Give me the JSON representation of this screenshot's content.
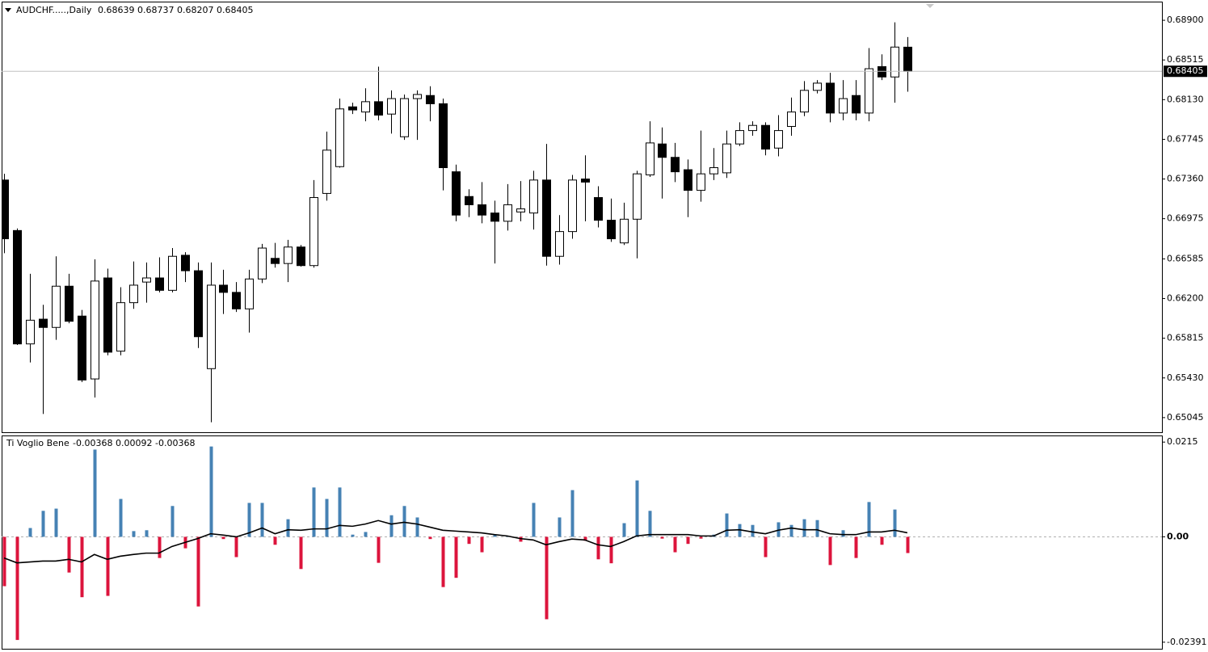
{
  "chart_data": [
    {
      "type": "candlestick",
      "title": "AUDCHF.....,Daily",
      "open": [
        0.6735,
        0.6686,
        0.6576,
        0.66,
        0.6592,
        0.6632,
        0.6603,
        0.6542,
        0.664,
        0.6569,
        0.6616,
        0.6636,
        0.664,
        0.6628,
        0.6662,
        0.6647,
        0.6552,
        0.6633,
        0.6626,
        0.661,
        0.6639,
        0.6659,
        0.6654,
        0.667,
        0.6652,
        0.6722,
        0.6748,
        0.6806,
        0.6801,
        0.6811,
        0.6799,
        0.6777,
        0.6814,
        0.6817,
        0.6809,
        0.6743,
        0.6719,
        0.6711,
        0.6703,
        0.6695,
        0.6704,
        0.6703,
        0.6735,
        0.6661,
        0.6685,
        0.6736,
        0.6718,
        0.6696,
        0.6674,
        0.6697,
        0.674,
        0.677,
        0.6757,
        0.6745,
        0.6725,
        0.6741,
        0.6742,
        0.677,
        0.6783,
        0.6788,
        0.6766,
        0.6787,
        0.6801,
        0.6822,
        0.6829,
        0.68,
        0.6817,
        0.68,
        0.6845,
        0.6835,
        0.68639
      ],
      "high": [
        0.6741,
        0.6688,
        0.6644,
        0.6614,
        0.6661,
        0.6644,
        0.6609,
        0.6658,
        0.6649,
        0.6631,
        0.6656,
        0.6655,
        0.666,
        0.6669,
        0.6665,
        0.6655,
        0.6655,
        0.6648,
        0.6636,
        0.6648,
        0.6673,
        0.6674,
        0.6677,
        0.6672,
        0.6735,
        0.6782,
        0.6814,
        0.681,
        0.6824,
        0.6845,
        0.6822,
        0.6818,
        0.6822,
        0.6826,
        0.6814,
        0.675,
        0.6726,
        0.6733,
        0.6715,
        0.6731,
        0.6734,
        0.6744,
        0.677,
        0.6701,
        0.674,
        0.6759,
        0.6729,
        0.6717,
        0.6713,
        0.6744,
        0.6792,
        0.6786,
        0.6771,
        0.6755,
        0.6783,
        0.6766,
        0.6783,
        0.6791,
        0.6792,
        0.6791,
        0.6798,
        0.6815,
        0.6831,
        0.6832,
        0.6839,
        0.6832,
        0.6832,
        0.6863,
        0.6857,
        0.6888,
        0.68737
      ],
      "low": [
        0.6664,
        0.6575,
        0.6558,
        0.6508,
        0.658,
        0.6596,
        0.6539,
        0.6524,
        0.6565,
        0.6565,
        0.661,
        0.6616,
        0.6626,
        0.6626,
        0.6636,
        0.6572,
        0.65,
        0.6605,
        0.6607,
        0.6587,
        0.6635,
        0.665,
        0.6636,
        0.6651,
        0.665,
        0.6715,
        0.6747,
        0.6799,
        0.6792,
        0.6793,
        0.678,
        0.6774,
        0.6774,
        0.6792,
        0.6725,
        0.6695,
        0.6699,
        0.6693,
        0.6654,
        0.6686,
        0.6695,
        0.6687,
        0.6652,
        0.6653,
        0.6678,
        0.6695,
        0.6689,
        0.6675,
        0.6672,
        0.6659,
        0.6738,
        0.6717,
        0.6733,
        0.6699,
        0.6714,
        0.6735,
        0.6737,
        0.6768,
        0.6778,
        0.6759,
        0.6758,
        0.6778,
        0.6797,
        0.6819,
        0.6791,
        0.6793,
        0.6793,
        0.6792,
        0.6832,
        0.681,
        0.68207
      ],
      "close": [
        0.6678,
        0.6576,
        0.6599,
        0.6592,
        0.6632,
        0.6598,
        0.6541,
        0.6637,
        0.6568,
        0.6616,
        0.6633,
        0.664,
        0.6628,
        0.6661,
        0.6647,
        0.6583,
        0.6633,
        0.6626,
        0.661,
        0.6639,
        0.6669,
        0.6654,
        0.667,
        0.6652,
        0.6718,
        0.6764,
        0.6804,
        0.6803,
        0.6811,
        0.6798,
        0.6814,
        0.6814,
        0.6818,
        0.6809,
        0.6747,
        0.6701,
        0.6711,
        0.6701,
        0.6695,
        0.6711,
        0.6707,
        0.6735,
        0.6661,
        0.6685,
        0.6735,
        0.6733,
        0.6696,
        0.6678,
        0.6697,
        0.6741,
        0.6771,
        0.6757,
        0.6743,
        0.6725,
        0.6741,
        0.6747,
        0.677,
        0.6783,
        0.6788,
        0.6765,
        0.6783,
        0.6801,
        0.6822,
        0.6829,
        0.68,
        0.6814,
        0.68,
        0.6843,
        0.6835,
        0.6864,
        0.68405
      ],
      "up_color": "#ffffff",
      "down_color": "#000000",
      "ylim": [
        0.64903,
        0.69081
      ],
      "yticks": [
        {
          "value": 0.689,
          "label": "0.68900"
        },
        0.68515,
        {
          "value": 0.6813,
          "label": "0.68130"
        },
        0.67745,
        {
          "value": 0.6736,
          "label": "0.67360"
        },
        0.66975,
        0.66585,
        {
          "value": 0.662,
          "label": "0.66200"
        },
        0.65815,
        {
          "value": 0.6543,
          "label": "0.65430"
        },
        0.65045
      ]
    },
    {
      "type": "histogram",
      "title": "Ti Voglio Bene",
      "series": [
        {
          "values": [
            -0.0112,
            -0.0234,
            0.002,
            0.0059,
            0.0064,
            -0.0081,
            -0.0137,
            0.0198,
            -0.0134,
            0.0086,
            0.0013,
            0.0015,
            -0.0048,
            0.007,
            -0.0026,
            -0.0158,
            0.0205,
            -0.0005,
            -0.0046,
            0.0077,
            0.0077,
            -0.0018,
            0.004,
            -0.0073,
            0.0112,
            0.0086,
            0.0112,
            0.0005,
            0.0011,
            -0.0059,
            0.0049,
            0.007,
            0.0044,
            -0.0005,
            -0.0114,
            -0.0093,
            -0.0016,
            -0.0035,
            0.0005,
            0.0002,
            -0.0011,
            0.0077,
            -0.0187,
            0.0044,
            0.0106,
            -0.0009,
            -0.0051,
            -0.006,
            0.0031,
            0.0128,
            0.0059,
            -0.0004,
            -0.0035,
            -0.0016,
            -0.0004,
            0.0005,
            0.0053,
            0.0029,
            0.0027,
            -0.0046,
            0.0033,
            0.0027,
            0.004,
            0.0038,
            -0.0064,
            0.0015,
            -0.0048,
            0.0079,
            -0.0018,
            0.0062,
            -0.00368
          ],
          "color_up": "#4682b4",
          "color_down": "#dc143c"
        },
        {
          "values": [
            -0.0048,
            -0.0059,
            -0.0057,
            -0.0055,
            -0.0055,
            -0.0051,
            -0.0057,
            -0.004,
            -0.0051,
            -0.0044,
            -0.004,
            -0.0037,
            -0.0037,
            -0.0022,
            -0.0013,
            -0.0004,
            0.0007,
            0.0004,
            0,
            0.0009,
            0.002,
            0.0007,
            0.0016,
            0.0015,
            0.0018,
            0.0018,
            0.0026,
            0.0024,
            0.0029,
            0.0037,
            0.0029,
            0.0033,
            0.0029,
            0.0022,
            0.0015,
            0.0013,
            0.0011,
            0.0009,
            0.0005,
            0.0002,
            -0.0004,
            -0.0007,
            -0.0018,
            -0.0011,
            -0.0005,
            -0.0007,
            -0.0018,
            -0.0022,
            -0.0011,
            0.0002,
            0.0005,
            0.0005,
            0.0005,
            0.0005,
            0.0002,
            0.0002,
            0.0015,
            0.0016,
            0.0011,
            0.0007,
            0.0015,
            0.002,
            0.0016,
            0.0016,
            0.0007,
            0.0005,
            0.0005,
            0.0011,
            0.0011,
            0.0015,
            0.00092
          ],
          "color": "#000000"
        }
      ],
      "ylim": [
        -0.0254,
        0.023
      ],
      "yticks": [
        0.0215,
        {
          "value": 0,
          "label": "0.00"
        },
        -0.02391
      ]
    }
  ]
}
